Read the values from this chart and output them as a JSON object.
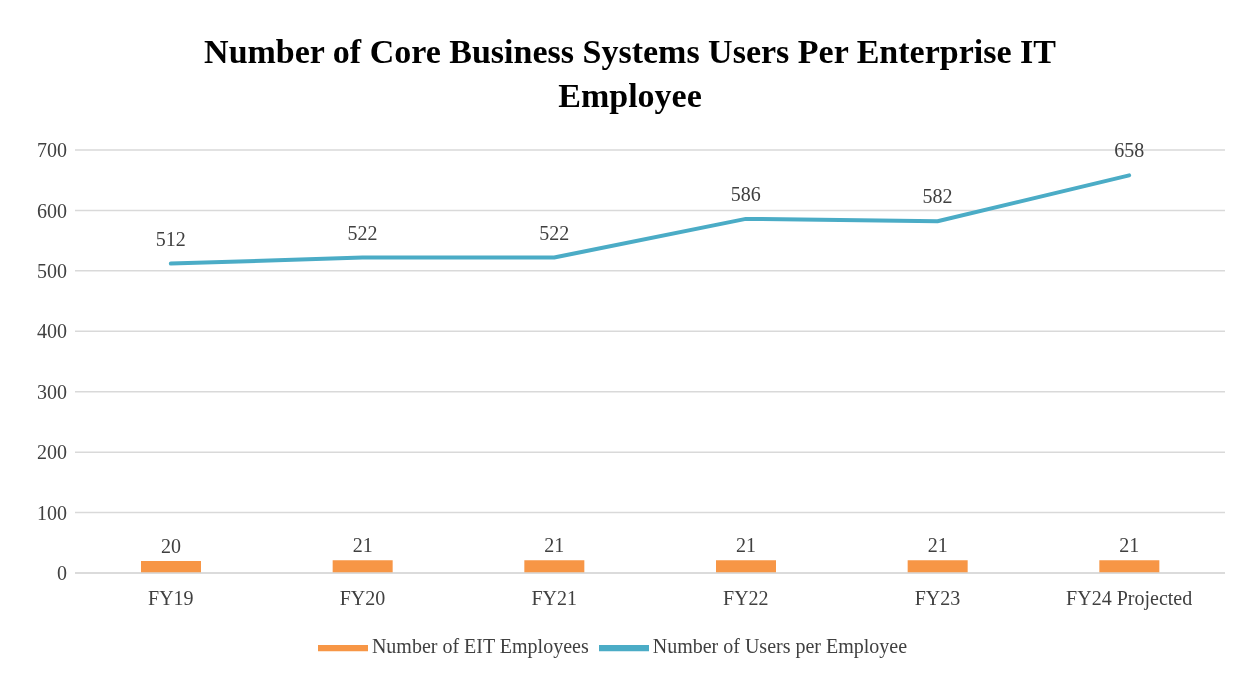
{
  "chart_data": {
    "type": "bar",
    "title": "Number of Core Business Systems Users Per Enterprise IT Employee",
    "categories": [
      "FY19",
      "FY20",
      "FY21",
      "FY22",
      "FY23",
      "FY24 Projected"
    ],
    "series": [
      {
        "name": "Number of EIT Employees",
        "color": "#f79646",
        "values": [
          20,
          21,
          21,
          21,
          21,
          21
        ]
      },
      {
        "name": "Number of Users per Employee",
        "type": "line",
        "color": "#4bacc6",
        "values": [
          512,
          522,
          522,
          586,
          582,
          658
        ]
      }
    ],
    "ylim": [
      0,
      700
    ],
    "yticks": [
      0,
      100,
      200,
      300,
      400,
      500,
      600,
      700
    ],
    "grid": "y",
    "legend": "bottom",
    "data_labels": true,
    "marker": "none",
    "line_style": "solid"
  }
}
